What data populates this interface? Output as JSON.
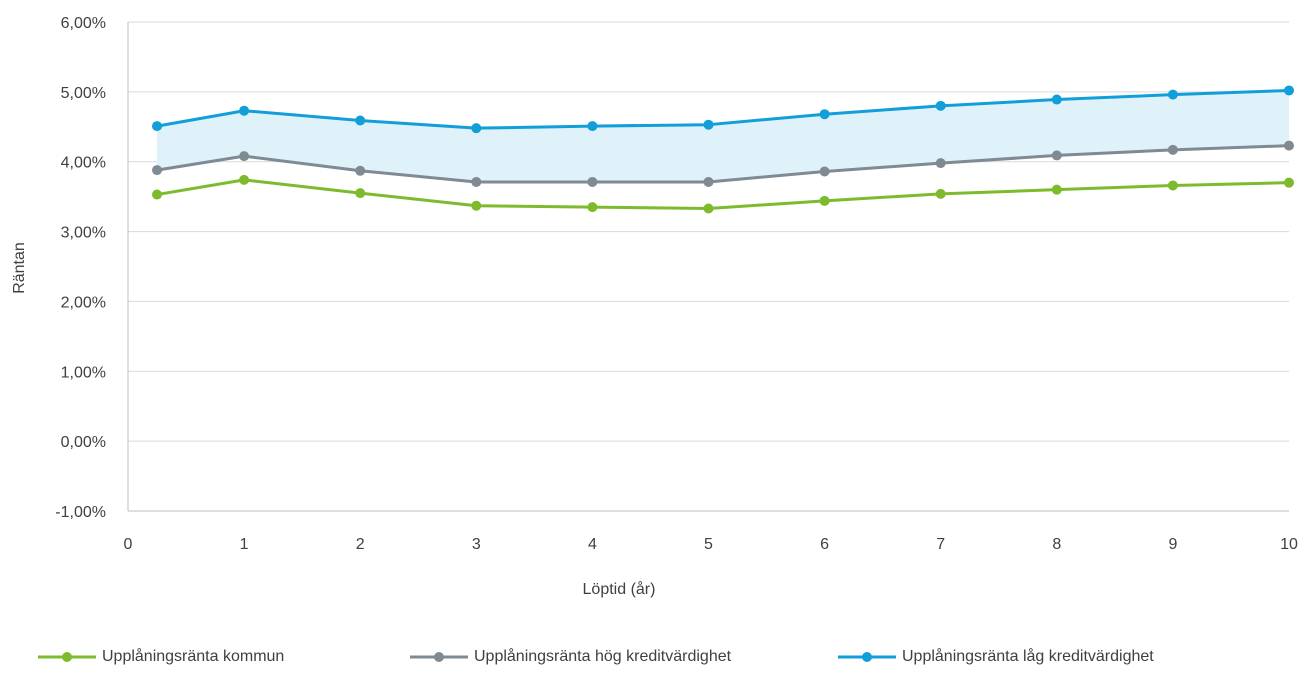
{
  "chart_data": {
    "type": "line",
    "xlabel": "Löptid (år)",
    "ylabel": "Räntan",
    "xlim": [
      0,
      10
    ],
    "ylim": [
      -1,
      6
    ],
    "x_ticks": [
      "0",
      "1",
      "2",
      "3",
      "4",
      "5",
      "6",
      "7",
      "8",
      "9",
      "10"
    ],
    "y_ticks": [
      "-1,00%",
      "0,00%",
      "1,00%",
      "2,00%",
      "3,00%",
      "4,00%",
      "5,00%",
      "6,00%"
    ],
    "x": [
      0.25,
      1,
      2,
      3,
      4,
      5,
      6,
      7,
      8,
      9,
      10
    ],
    "grid": "horizontal",
    "legend_position": "bottom",
    "shaded_band": {
      "between": [
        "Upplåningsränta hög kreditvärdighet",
        "Upplåningsränta låg kreditvärdighet"
      ],
      "color": "#dff2f9"
    },
    "series": [
      {
        "name": "Upplåningsränta kommun",
        "color": "#7dbb2c",
        "values": [
          3.53,
          3.74,
          3.55,
          3.37,
          3.35,
          3.33,
          3.44,
          3.54,
          3.6,
          3.66,
          3.7
        ]
      },
      {
        "name": "Upplåningsränta hög kreditvärdighet",
        "color": "#7f8a93",
        "values": [
          3.88,
          4.08,
          3.87,
          3.71,
          3.71,
          3.71,
          3.86,
          3.98,
          4.09,
          4.17,
          4.23
        ]
      },
      {
        "name": "Upplåningsränta låg kreditvärdighet",
        "color": "#129fd9",
        "values": [
          4.51,
          4.73,
          4.59,
          4.48,
          4.51,
          4.53,
          4.68,
          4.8,
          4.89,
          4.96,
          5.02
        ]
      }
    ]
  }
}
